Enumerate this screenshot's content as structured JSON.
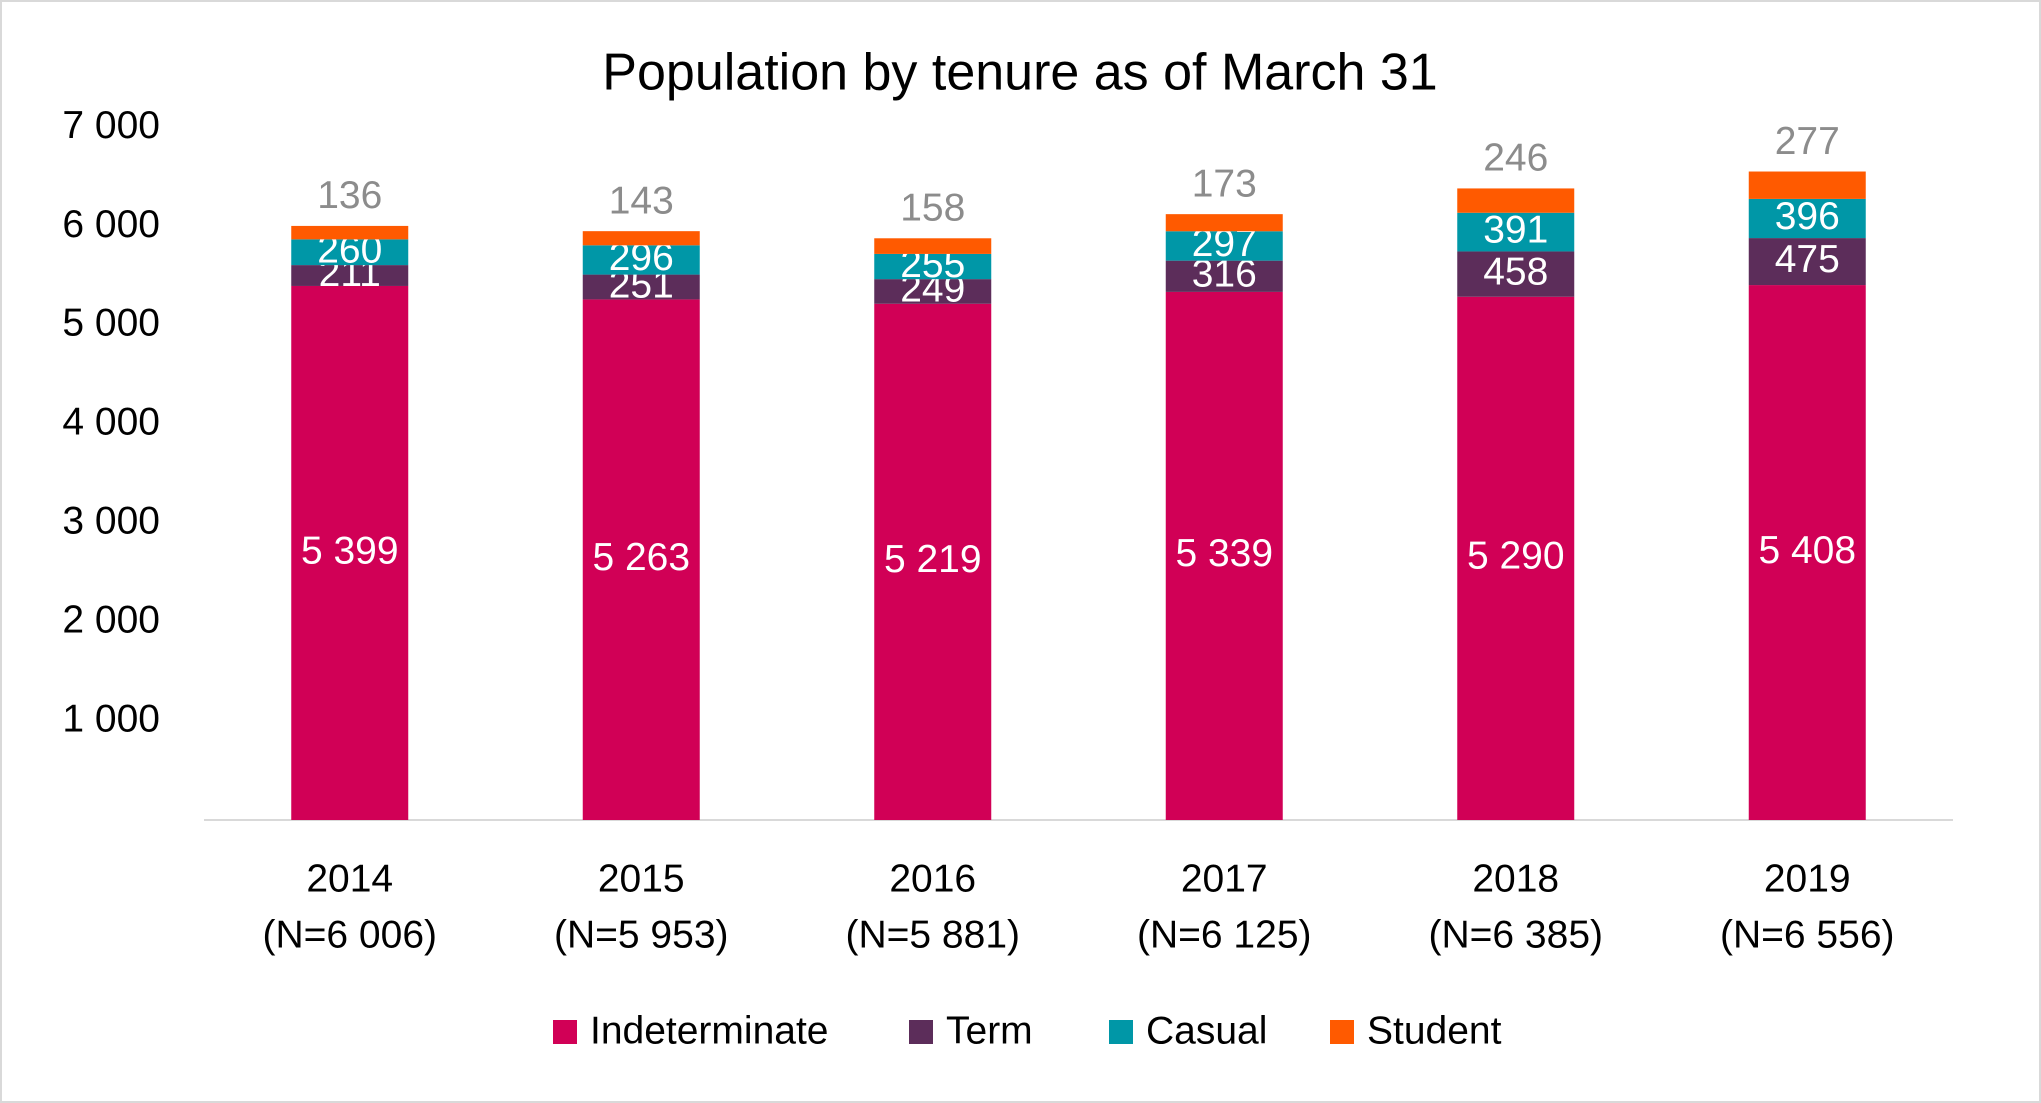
{
  "chart_data": {
    "type": "stacked_bar",
    "title": "Population by tenure as of March 31",
    "categories": [
      [
        "2014",
        "(N=6 006)"
      ],
      [
        "2015",
        "(N=5 953)"
      ],
      [
        "2016",
        "(N=5 881)"
      ],
      [
        "2017",
        "(N=6 125)"
      ],
      [
        "2018",
        "(N=6 385)"
      ],
      [
        "2019",
        "(N=6 556)"
      ]
    ],
    "series": [
      {
        "name": "Indeterminate",
        "color": "#d10056",
        "values": [
          5399,
          5263,
          5219,
          5339,
          5290,
          5408
        ],
        "value_labels": [
          "5 399",
          "5 263",
          "5 219",
          "5 339",
          "5 290",
          "5 408"
        ]
      },
      {
        "name": "Term",
        "color": "#5c2d5a",
        "values": [
          211,
          251,
          249,
          316,
          458,
          475
        ]
      },
      {
        "name": "Casual",
        "color": "#0097a7",
        "values": [
          260,
          296,
          255,
          297,
          391,
          396
        ]
      },
      {
        "name": "Student",
        "color": "#ff5a00",
        "values": [
          136,
          143,
          158,
          173,
          246,
          277
        ]
      }
    ],
    "ylim": [
      0,
      7000
    ],
    "yticks": [
      {
        "value": 1000,
        "label": "1 000"
      },
      {
        "value": 2000,
        "label": "2 000"
      },
      {
        "value": 3000,
        "label": "3 000"
      },
      {
        "value": 4000,
        "label": "4 000"
      },
      {
        "value": 5000,
        "label": "5 000"
      },
      {
        "value": 6000,
        "label": "6 000"
      },
      {
        "value": 7000,
        "label": "7 000"
      }
    ],
    "legend": "bottom"
  }
}
